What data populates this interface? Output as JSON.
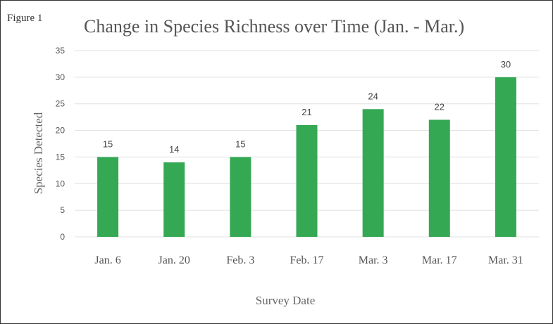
{
  "figure_label": "Figure 1",
  "chart_data": {
    "type": "bar",
    "title": "Change in Species Richness over Time (Jan. - Mar.)",
    "xlabel": "Survey Date",
    "ylabel": "Species Detected",
    "categories": [
      "Jan. 6",
      "Jan. 20",
      "Feb. 3",
      "Feb. 17",
      "Mar. 3",
      "Mar. 17",
      "Mar. 31"
    ],
    "values": [
      15,
      14,
      15,
      21,
      24,
      22,
      30
    ],
    "ylim": [
      0,
      35
    ],
    "yticks": [
      0,
      5,
      10,
      15,
      20,
      25,
      30,
      35
    ],
    "grid": true,
    "data_labels": true,
    "bar_color": "#34a853",
    "grid_color": "#e0e0e0"
  }
}
